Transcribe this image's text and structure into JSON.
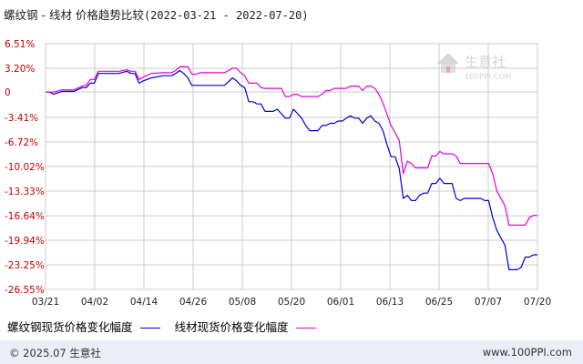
{
  "header": {
    "title": "螺纹钢 - 线材 价格趋势比较",
    "date_range": "(2022-03-21 - 2022-07-20)"
  },
  "watermark": {
    "name": "生意社",
    "url": "100PPI.COM"
  },
  "legend": {
    "items": [
      {
        "label": "螺纹钢现货价格变化幅度",
        "color": "#0000cc"
      },
      {
        "label": "线材现货价格变化幅度",
        "color": "#e000e0"
      }
    ]
  },
  "footer": {
    "copyright": "© 2025.07 生意社",
    "site": "www.100PPI.com"
  },
  "colors": {
    "axis_label": "#c00000",
    "grid": "#cccccc",
    "series_rebar": "#0000cc",
    "series_wire": "#e000e0"
  },
  "chart_data": {
    "type": "line",
    "title": "螺纹钢 - 线材 价格趋势比较",
    "x_tick_labels": [
      "03/21",
      "04/02",
      "04/14",
      "04/26",
      "05/08",
      "05/20",
      "06/01",
      "06/13",
      "06/25",
      "07/07",
      "07/20"
    ],
    "y_tick_labels": [
      "6.51%",
      "3.20%",
      "0",
      "-3.41%",
      "-6.72%",
      "-10.02%",
      "-13.33%",
      "-16.64%",
      "-19.94%",
      "-23.25%",
      "-26.55%"
    ],
    "y_ticks": [
      6.51,
      3.2,
      0,
      -3.41,
      -6.72,
      -10.02,
      -13.33,
      -16.64,
      -19.94,
      -23.25,
      -26.55
    ],
    "ylim": [
      -26.55,
      6.51
    ],
    "x_range": [
      "2022-03-21",
      "2022-07-20"
    ],
    "grid": true,
    "legend_position": "bottom",
    "series": [
      {
        "name": "螺纹钢现货价格变化幅度",
        "color": "#0000cc",
        "points": [
          [
            "2022-03-21",
            0
          ],
          [
            "2022-03-22",
            0
          ],
          [
            "2022-03-23",
            -0.3
          ],
          [
            "2022-03-25",
            0.1
          ],
          [
            "2022-03-28",
            0.1
          ],
          [
            "2022-03-30",
            0.6
          ],
          [
            "2022-03-31",
            0.6
          ],
          [
            "2022-04-01",
            1.2
          ],
          [
            "2022-04-02",
            1.2
          ],
          [
            "2022-04-03",
            2.5
          ],
          [
            "2022-04-06",
            2.5
          ],
          [
            "2022-04-08",
            2.5
          ],
          [
            "2022-04-10",
            2.8
          ],
          [
            "2022-04-11",
            2.5
          ],
          [
            "2022-04-12",
            2.5
          ],
          [
            "2022-04-13",
            1.2
          ],
          [
            "2022-04-14",
            1.5
          ],
          [
            "2022-04-16",
            1.9
          ],
          [
            "2022-04-19",
            2.2
          ],
          [
            "2022-04-21",
            2.2
          ],
          [
            "2022-04-22",
            2.5
          ],
          [
            "2022-04-23",
            2.9
          ],
          [
            "2022-04-24",
            2.5
          ],
          [
            "2022-04-25",
            1.9
          ],
          [
            "2022-04-26",
            0.9
          ],
          [
            "2022-04-27",
            0.9
          ],
          [
            "2022-04-28",
            0.9
          ],
          [
            "2022-04-30",
            0.9
          ],
          [
            "2022-05-02",
            0.9
          ],
          [
            "2022-05-03",
            0.9
          ],
          [
            "2022-05-04",
            0.9
          ],
          [
            "2022-05-06",
            1.9
          ],
          [
            "2022-05-07",
            1.5
          ],
          [
            "2022-05-08",
            0.9
          ],
          [
            "2022-05-09",
            0.6
          ],
          [
            "2022-05-10",
            -1.3
          ],
          [
            "2022-05-11",
            -1.3
          ],
          [
            "2022-05-12",
            -1.6
          ],
          [
            "2022-05-13",
            -1.6
          ],
          [
            "2022-05-14",
            -2.6
          ],
          [
            "2022-05-16",
            -2.6
          ],
          [
            "2022-05-17",
            -2.3
          ],
          [
            "2022-05-18",
            -2.9
          ],
          [
            "2022-05-19",
            -3.5
          ],
          [
            "2022-05-20",
            -3.5
          ],
          [
            "2022-05-21",
            -2.3
          ],
          [
            "2022-05-22",
            -2.9
          ],
          [
            "2022-05-23",
            -3.5
          ],
          [
            "2022-05-24",
            -4.5
          ],
          [
            "2022-05-25",
            -5.2
          ],
          [
            "2022-05-27",
            -5.2
          ],
          [
            "2022-05-28",
            -4.5
          ],
          [
            "2022-05-29",
            -4.5
          ],
          [
            "2022-05-30",
            -4.2
          ],
          [
            "2022-05-31",
            -4.2
          ],
          [
            "2022-06-01",
            -3.9
          ],
          [
            "2022-06-02",
            -3.9
          ],
          [
            "2022-06-03",
            -3.5
          ],
          [
            "2022-06-04",
            -3.2
          ],
          [
            "2022-06-05",
            -3.5
          ],
          [
            "2022-06-06",
            -3.5
          ],
          [
            "2022-06-07",
            -4.2
          ],
          [
            "2022-06-08",
            -3.5
          ],
          [
            "2022-06-09",
            -3.2
          ],
          [
            "2022-06-10",
            -3.9
          ],
          [
            "2022-06-11",
            -4.2
          ],
          [
            "2022-06-12",
            -5.2
          ],
          [
            "2022-06-13",
            -7.1
          ],
          [
            "2022-06-14",
            -8.7
          ],
          [
            "2022-06-15",
            -8.7
          ],
          [
            "2022-06-16",
            -10.3
          ],
          [
            "2022-06-17",
            -14.3
          ],
          [
            "2022-06-18",
            -13.9
          ],
          [
            "2022-06-19",
            -14.6
          ],
          [
            "2022-06-20",
            -14.6
          ],
          [
            "2022-06-21",
            -13.9
          ],
          [
            "2022-06-22",
            -13.6
          ],
          [
            "2022-06-23",
            -13.6
          ],
          [
            "2022-06-24",
            -12.3
          ],
          [
            "2022-06-25",
            -12.3
          ],
          [
            "2022-06-26",
            -11.6
          ],
          [
            "2022-06-27",
            -12.3
          ],
          [
            "2022-06-28",
            -12.3
          ],
          [
            "2022-06-29",
            -12.3
          ],
          [
            "2022-06-30",
            -14.3
          ],
          [
            "2022-07-01",
            -14.6
          ],
          [
            "2022-07-02",
            -14.3
          ],
          [
            "2022-07-03",
            -14.3
          ],
          [
            "2022-07-05",
            -14.3
          ],
          [
            "2022-07-06",
            -14.3
          ],
          [
            "2022-07-07",
            -14.6
          ],
          [
            "2022-07-08",
            -14.6
          ],
          [
            "2022-07-09",
            -16.9
          ],
          [
            "2022-07-10",
            -18.6
          ],
          [
            "2022-07-12",
            -20.6
          ],
          [
            "2022-07-13",
            -23.9
          ],
          [
            "2022-07-14",
            -23.9
          ],
          [
            "2022-07-15",
            -23.9
          ],
          [
            "2022-07-16",
            -23.6
          ],
          [
            "2022-07-17",
            -22.2
          ],
          [
            "2022-07-18",
            -22.2
          ],
          [
            "2022-07-19",
            -21.9
          ],
          [
            "2022-07-20",
            -21.9
          ]
        ]
      },
      {
        "name": "线材现货价格变化幅度",
        "color": "#e000e0",
        "points": [
          [
            "2022-03-21",
            0
          ],
          [
            "2022-03-22",
            0
          ],
          [
            "2022-03-23",
            0
          ],
          [
            "2022-03-25",
            0.3
          ],
          [
            "2022-03-28",
            0.3
          ],
          [
            "2022-03-30",
            0.8
          ],
          [
            "2022-03-31",
            0.9
          ],
          [
            "2022-04-01",
            1.7
          ],
          [
            "2022-04-02",
            1.7
          ],
          [
            "2022-04-03",
            2.8
          ],
          [
            "2022-04-06",
            2.8
          ],
          [
            "2022-04-08",
            2.8
          ],
          [
            "2022-04-10",
            3.0
          ],
          [
            "2022-04-11",
            2.8
          ],
          [
            "2022-04-12",
            2.8
          ],
          [
            "2022-04-13",
            1.7
          ],
          [
            "2022-04-14",
            2.0
          ],
          [
            "2022-04-16",
            2.5
          ],
          [
            "2022-04-19",
            2.6
          ],
          [
            "2022-04-21",
            2.6
          ],
          [
            "2022-04-22",
            2.9
          ],
          [
            "2022-04-23",
            3.4
          ],
          [
            "2022-04-25",
            3.4
          ],
          [
            "2022-04-26",
            2.4
          ],
          [
            "2022-04-27",
            2.4
          ],
          [
            "2022-04-28",
            2.6
          ],
          [
            "2022-04-30",
            2.6
          ],
          [
            "2022-05-02",
            2.6
          ],
          [
            "2022-05-03",
            2.6
          ],
          [
            "2022-05-04",
            2.6
          ],
          [
            "2022-05-06",
            3.2
          ],
          [
            "2022-05-07",
            3.2
          ],
          [
            "2022-05-08",
            2.6
          ],
          [
            "2022-05-09",
            2.2
          ],
          [
            "2022-05-10",
            1.2
          ],
          [
            "2022-05-11",
            1.2
          ],
          [
            "2022-05-12",
            1.2
          ],
          [
            "2022-05-13",
            0.6
          ],
          [
            "2022-05-14",
            0.5
          ],
          [
            "2022-05-16",
            0.5
          ],
          [
            "2022-05-17",
            0.5
          ],
          [
            "2022-05-18",
            0.5
          ],
          [
            "2022-05-19",
            -0.6
          ],
          [
            "2022-05-20",
            -0.6
          ],
          [
            "2022-05-21",
            -0.3
          ],
          [
            "2022-05-22",
            -0.3
          ],
          [
            "2022-05-23",
            -0.6
          ],
          [
            "2022-05-24",
            -0.6
          ],
          [
            "2022-05-25",
            -0.6
          ],
          [
            "2022-05-27",
            -0.6
          ],
          [
            "2022-05-28",
            -0.3
          ],
          [
            "2022-05-29",
            0.2
          ],
          [
            "2022-05-30",
            0.2
          ],
          [
            "2022-05-31",
            0.5
          ],
          [
            "2022-06-01",
            0.5
          ],
          [
            "2022-06-02",
            0.5
          ],
          [
            "2022-06-03",
            0.5
          ],
          [
            "2022-06-04",
            0.8
          ],
          [
            "2022-06-05",
            0.8
          ],
          [
            "2022-06-06",
            0.8
          ],
          [
            "2022-06-07",
            0.2
          ],
          [
            "2022-06-08",
            0.8
          ],
          [
            "2022-06-09",
            0.8
          ],
          [
            "2022-06-10",
            0.5
          ],
          [
            "2022-06-11",
            -0.3
          ],
          [
            "2022-06-12",
            -1.5
          ],
          [
            "2022-06-13",
            -3.0
          ],
          [
            "2022-06-14",
            -4.5
          ],
          [
            "2022-06-15",
            -5.5
          ],
          [
            "2022-06-16",
            -6.5
          ],
          [
            "2022-06-17",
            -11.0
          ],
          [
            "2022-06-18",
            -9.3
          ],
          [
            "2022-06-19",
            -9.6
          ],
          [
            "2022-06-20",
            -10.2
          ],
          [
            "2022-06-21",
            -10.2
          ],
          [
            "2022-06-22",
            -10.2
          ],
          [
            "2022-06-23",
            -10.2
          ],
          [
            "2022-06-24",
            -8.6
          ],
          [
            "2022-06-25",
            -8.6
          ],
          [
            "2022-06-26",
            -8.0
          ],
          [
            "2022-06-27",
            -8.3
          ],
          [
            "2022-06-28",
            -8.3
          ],
          [
            "2022-06-29",
            -8.3
          ],
          [
            "2022-06-30",
            -8.6
          ],
          [
            "2022-07-01",
            -9.6
          ],
          [
            "2022-07-02",
            -9.6
          ],
          [
            "2022-07-03",
            -9.6
          ],
          [
            "2022-07-05",
            -9.6
          ],
          [
            "2022-07-06",
            -9.6
          ],
          [
            "2022-07-07",
            -9.6
          ],
          [
            "2022-07-08",
            -9.6
          ],
          [
            "2022-07-09",
            -11.0
          ],
          [
            "2022-07-10",
            -13.3
          ],
          [
            "2022-07-12",
            -15.3
          ],
          [
            "2022-07-13",
            -17.9
          ],
          [
            "2022-07-14",
            -17.9
          ],
          [
            "2022-07-15",
            -17.9
          ],
          [
            "2022-07-16",
            -17.9
          ],
          [
            "2022-07-17",
            -17.9
          ],
          [
            "2022-07-18",
            -16.9
          ],
          [
            "2022-07-19",
            -16.6
          ],
          [
            "2022-07-20",
            -16.6
          ]
        ]
      }
    ]
  }
}
